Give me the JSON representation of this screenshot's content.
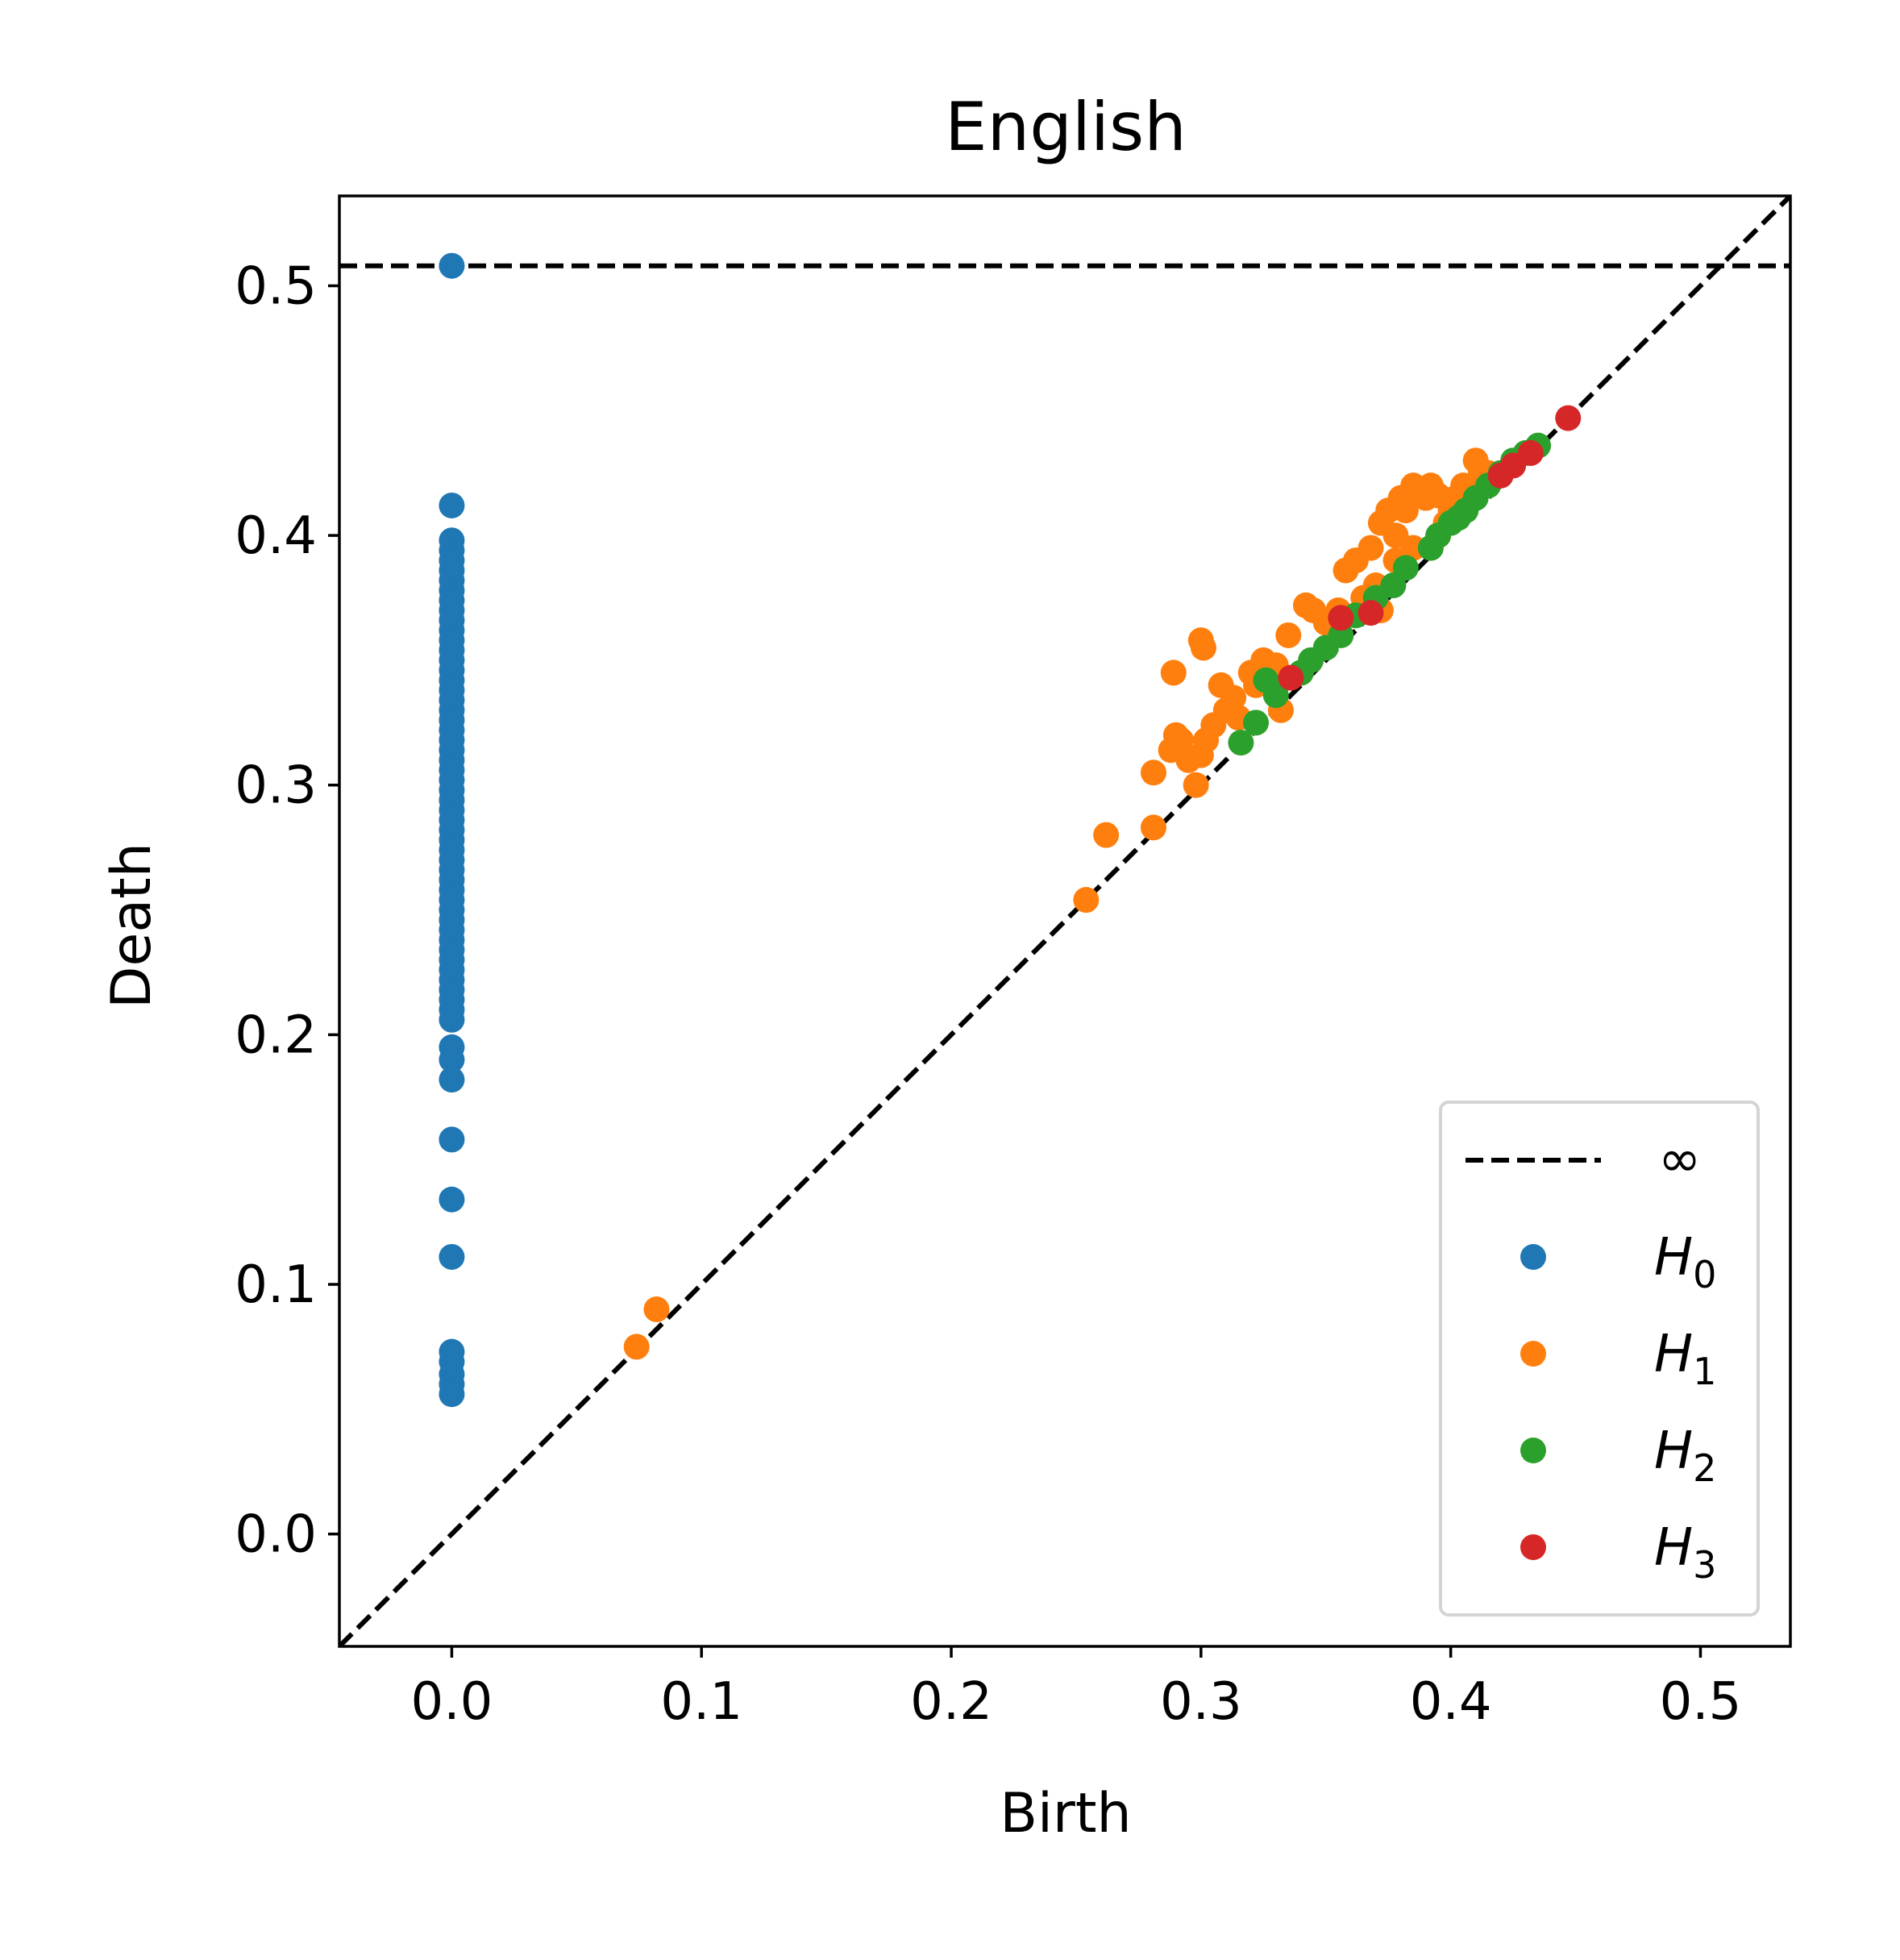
{
  "chart_data": {
    "type": "scatter",
    "title": "English",
    "xlabel": "Birth",
    "ylabel": "Death",
    "xlim": [
      -0.045,
      0.536
    ],
    "ylim": [
      -0.045,
      0.536
    ],
    "xticks": [
      "0.0",
      "0.1",
      "0.2",
      "0.3",
      "0.4",
      "0.5"
    ],
    "yticks": [
      "0.0",
      "0.1",
      "0.2",
      "0.3",
      "0.4",
      "0.5"
    ],
    "grid": false,
    "legend_position": "lower-right",
    "infinity_line": {
      "label": "∞",
      "y": 0.508,
      "color": "#000000"
    },
    "diagonal": {
      "style": "dashed",
      "color": "#000000"
    },
    "series": [
      {
        "name": "H0",
        "label_base": "H",
        "label_sub": "0",
        "color": "#1f77b4",
        "points": [
          [
            0,
            0.508
          ],
          [
            0,
            0.412
          ],
          [
            0,
            0.398
          ],
          [
            0,
            0.394
          ],
          [
            0,
            0.39
          ],
          [
            0,
            0.386
          ],
          [
            0,
            0.382
          ],
          [
            0,
            0.378
          ],
          [
            0,
            0.374
          ],
          [
            0,
            0.37
          ],
          [
            0,
            0.366
          ],
          [
            0,
            0.362
          ],
          [
            0,
            0.358
          ],
          [
            0,
            0.354
          ],
          [
            0,
            0.35
          ],
          [
            0,
            0.346
          ],
          [
            0,
            0.342
          ],
          [
            0,
            0.338
          ],
          [
            0,
            0.334
          ],
          [
            0,
            0.33
          ],
          [
            0,
            0.326
          ],
          [
            0,
            0.322
          ],
          [
            0,
            0.318
          ],
          [
            0,
            0.314
          ],
          [
            0,
            0.31
          ],
          [
            0,
            0.306
          ],
          [
            0,
            0.302
          ],
          [
            0,
            0.298
          ],
          [
            0,
            0.294
          ],
          [
            0,
            0.29
          ],
          [
            0,
            0.286
          ],
          [
            0,
            0.282
          ],
          [
            0,
            0.278
          ],
          [
            0,
            0.274
          ],
          [
            0,
            0.27
          ],
          [
            0,
            0.266
          ],
          [
            0,
            0.262
          ],
          [
            0,
            0.258
          ],
          [
            0,
            0.254
          ],
          [
            0,
            0.25
          ],
          [
            0,
            0.246
          ],
          [
            0,
            0.242
          ],
          [
            0,
            0.238
          ],
          [
            0,
            0.234
          ],
          [
            0,
            0.23
          ],
          [
            0,
            0.226
          ],
          [
            0,
            0.222
          ],
          [
            0,
            0.218
          ],
          [
            0,
            0.214
          ],
          [
            0,
            0.21
          ],
          [
            0,
            0.206
          ],
          [
            0,
            0.195
          ],
          [
            0,
            0.19
          ],
          [
            0,
            0.182
          ],
          [
            0,
            0.158
          ],
          [
            0,
            0.134
          ],
          [
            0,
            0.111
          ],
          [
            0,
            0.073
          ],
          [
            0,
            0.069
          ],
          [
            0,
            0.064
          ],
          [
            0,
            0.06
          ],
          [
            0,
            0.056
          ]
        ]
      },
      {
        "name": "H1",
        "label_base": "H",
        "label_sub": "1",
        "color": "#ff7f0e",
        "points": [
          [
            0.074,
            0.075
          ],
          [
            0.082,
            0.09
          ],
          [
            0.254,
            0.254
          ],
          [
            0.262,
            0.28
          ],
          [
            0.281,
            0.283
          ],
          [
            0.281,
            0.305
          ],
          [
            0.288,
            0.314
          ],
          [
            0.29,
            0.32
          ],
          [
            0.289,
            0.345
          ],
          [
            0.292,
            0.318
          ],
          [
            0.295,
            0.31
          ],
          [
            0.298,
            0.3
          ],
          [
            0.3,
            0.312
          ],
          [
            0.302,
            0.318
          ],
          [
            0.305,
            0.324
          ],
          [
            0.3,
            0.358
          ],
          [
            0.301,
            0.355
          ],
          [
            0.308,
            0.34
          ],
          [
            0.31,
            0.33
          ],
          [
            0.313,
            0.335
          ],
          [
            0.315,
            0.327
          ],
          [
            0.32,
            0.345
          ],
          [
            0.325,
            0.35
          ],
          [
            0.322,
            0.34
          ],
          [
            0.33,
            0.348
          ],
          [
            0.335,
            0.36
          ],
          [
            0.332,
            0.33
          ],
          [
            0.34,
            0.345
          ],
          [
            0.342,
            0.372
          ],
          [
            0.345,
            0.37
          ],
          [
            0.35,
            0.365
          ],
          [
            0.355,
            0.37
          ],
          [
            0.358,
            0.386
          ],
          [
            0.362,
            0.39
          ],
          [
            0.365,
            0.375
          ],
          [
            0.368,
            0.395
          ],
          [
            0.37,
            0.38
          ],
          [
            0.372,
            0.405
          ],
          [
            0.375,
            0.41
          ],
          [
            0.378,
            0.4
          ],
          [
            0.38,
            0.415
          ],
          [
            0.382,
            0.41
          ],
          [
            0.385,
            0.42
          ],
          [
            0.388,
            0.418
          ],
          [
            0.39,
            0.415
          ],
          [
            0.392,
            0.42
          ],
          [
            0.395,
            0.416
          ],
          [
            0.398,
            0.405
          ],
          [
            0.4,
            0.41
          ],
          [
            0.405,
            0.42
          ],
          [
            0.41,
            0.43
          ],
          [
            0.415,
            0.425
          ],
          [
            0.372,
            0.37
          ],
          [
            0.378,
            0.39
          ],
          [
            0.385,
            0.395
          ],
          [
            0.395,
            0.4
          ],
          [
            0.402,
            0.415
          ],
          [
            0.412,
            0.425
          ]
        ]
      },
      {
        "name": "H2",
        "label_base": "H",
        "label_sub": "2",
        "color": "#2ca02c",
        "points": [
          [
            0.316,
            0.317
          ],
          [
            0.322,
            0.325
          ],
          [
            0.326,
            0.342
          ],
          [
            0.33,
            0.336
          ],
          [
            0.34,
            0.345
          ],
          [
            0.344,
            0.35
          ],
          [
            0.35,
            0.355
          ],
          [
            0.356,
            0.36
          ],
          [
            0.362,
            0.368
          ],
          [
            0.37,
            0.375
          ],
          [
            0.377,
            0.38
          ],
          [
            0.382,
            0.387
          ],
          [
            0.392,
            0.395
          ],
          [
            0.395,
            0.4
          ],
          [
            0.4,
            0.405
          ],
          [
            0.403,
            0.407
          ],
          [
            0.406,
            0.41
          ],
          [
            0.41,
            0.415
          ],
          [
            0.415,
            0.42
          ],
          [
            0.42,
            0.425
          ],
          [
            0.425,
            0.43
          ],
          [
            0.43,
            0.433
          ],
          [
            0.435,
            0.436
          ]
        ]
      },
      {
        "name": "H3",
        "label_base": "H",
        "label_sub": "3",
        "color": "#d62728",
        "points": [
          [
            0.336,
            0.343
          ],
          [
            0.356,
            0.367
          ],
          [
            0.368,
            0.369
          ],
          [
            0.42,
            0.424
          ],
          [
            0.425,
            0.428
          ],
          [
            0.432,
            0.433
          ],
          [
            0.447,
            0.447
          ]
        ]
      }
    ]
  }
}
